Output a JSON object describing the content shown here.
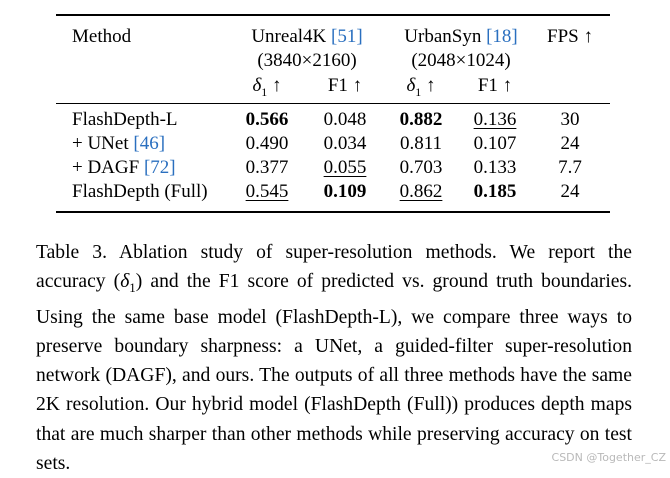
{
  "table": {
    "header": {
      "method": "Method",
      "unreal_name": "Unreal4K",
      "unreal_cite": "[51]",
      "unreal_res": "(3840×2160)",
      "urban_name": "UrbanSyn",
      "urban_cite": "[18]",
      "urban_res": "(2048×1024)",
      "fps": "FPS ↑",
      "delta_sym": "δ",
      "delta_sub": "1",
      "arrow": "↑",
      "f1": "F1 ↑"
    },
    "rows": [
      {
        "method": "FlashDepth-L",
        "cite": "",
        "u_d1": "0.566",
        "u_f1": "0.048",
        "s_d1": "0.882",
        "s_f1": "0.136",
        "fps": "30"
      },
      {
        "method": "+ UNet",
        "cite": "[46]",
        "u_d1": "0.490",
        "u_f1": "0.034",
        "s_d1": "0.811",
        "s_f1": "0.107",
        "fps": "24"
      },
      {
        "method": "+ DAGF",
        "cite": "[72]",
        "u_d1": "0.377",
        "u_f1": "0.055",
        "s_d1": "0.703",
        "s_f1": "0.133",
        "fps": "7.7"
      },
      {
        "method": "FlashDepth (Full)",
        "cite": "",
        "u_d1": "0.545",
        "u_f1": "0.109",
        "s_d1": "0.862",
        "s_f1": "0.185",
        "fps": "24"
      }
    ]
  },
  "caption": {
    "p1": "Table 3. Ablation study of super-resolution methods. We report the accuracy (",
    "delta": "δ",
    "sub": "1",
    "p2": ") and the F1 score of predicted vs. ground truth boundaries. Using the same base model (FlashDepth-L), we compare three ways to preserve boundary sharpness: a UNet, a guided-filter super-resolution network (DAGF), and ours. The outputs of all three methods have the same 2K resolution. Our hybrid model (FlashDepth (Full)) produces depth maps that are much sharper than other methods while preserving accuracy on test sets."
  },
  "watermark": "CSDN @Together_CZ"
}
